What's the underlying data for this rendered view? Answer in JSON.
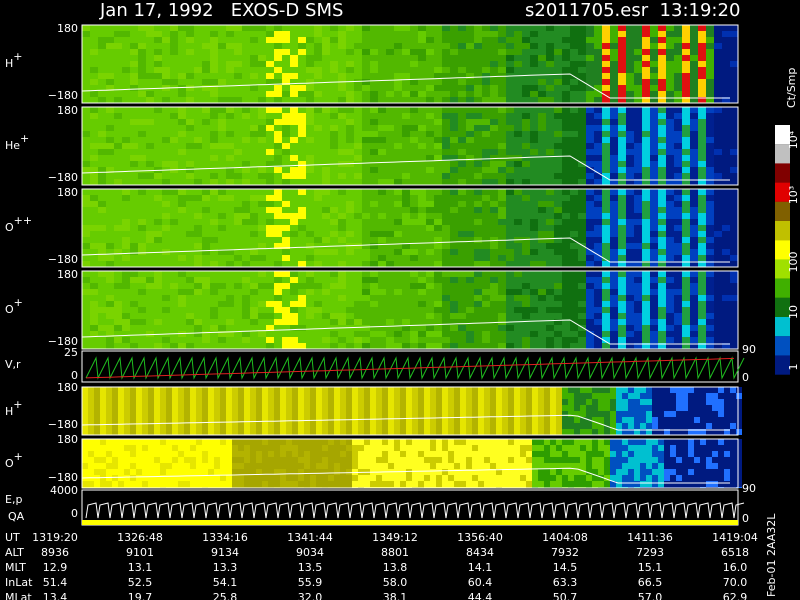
{
  "header": {
    "title": "Jan 17, 1992   EXOS-D SMS",
    "file": "s2011705.esr  13:19:20"
  },
  "panels": [
    {
      "label": "H",
      "sup": "+",
      "top": "180",
      "bottom": "−180"
    },
    {
      "label": "He",
      "sup": "+",
      "top": "180",
      "bottom": "−180"
    },
    {
      "label": "O",
      "sup": "++",
      "top": "180",
      "bottom": "−180"
    },
    {
      "label": "O",
      "sup": "+",
      "top": "180",
      "bottom": "−180",
      "right": "90"
    }
  ],
  "vr": {
    "label": "V,r",
    "top": "25",
    "bottom": "0",
    "right": "0"
  },
  "panels2": [
    {
      "label": "H",
      "sup": "+",
      "top": "180",
      "bottom": "−180"
    },
    {
      "label": "O",
      "sup": "+",
      "top": "180",
      "bottom": "−180",
      "right": "90"
    }
  ],
  "ep": {
    "label": "E,p",
    "label2": "QA",
    "top": "4000",
    "bottom": "0",
    "right": "0"
  },
  "colorbar": {
    "unit": "Ct/Smp",
    "ticks": [
      "10⁴",
      "10³",
      "100",
      "10",
      "1"
    ]
  },
  "table": {
    "rows": [
      [
        "UT",
        "1319:20",
        "1326:48",
        "1334:16",
        "1341:44",
        "1349:12",
        "1356:40",
        "1404:08",
        "1411:36",
        "1419:04"
      ],
      [
        "ALT",
        "8936",
        "9101",
        "9134",
        "9034",
        "8801",
        "8434",
        "7932",
        "7293",
        "6518"
      ],
      [
        "MLT",
        "12.9",
        "13.1",
        "13.3",
        "13.5",
        "13.8",
        "14.1",
        "14.5",
        "15.1",
        "16.0"
      ],
      [
        "InLat",
        "51.4",
        "52.5",
        "54.1",
        "55.9",
        "58.0",
        "60.4",
        "63.3",
        "66.5",
        "70.0"
      ],
      [
        "MLat",
        "13.4",
        "19.7",
        "25.8",
        "32.0",
        "38.1",
        "44.4",
        "50.7",
        "57.0",
        "62.9"
      ]
    ]
  },
  "footer": "Feb-01 2AA32L"
}
